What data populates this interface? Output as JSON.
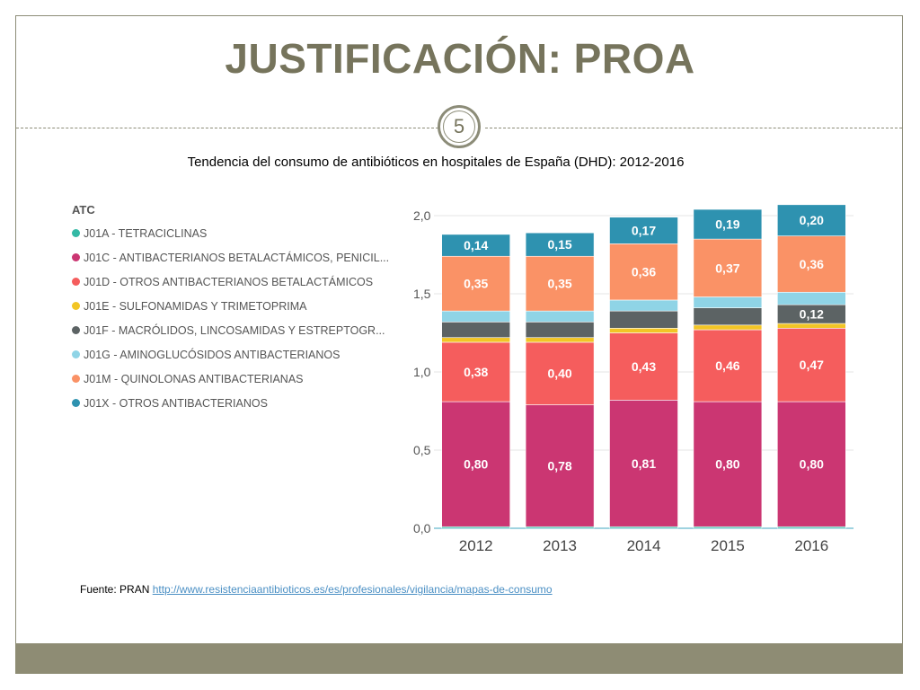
{
  "slide": {
    "title": "JUSTIFICACIÓN: PROA",
    "page_number": "5",
    "source_prefix": "Fuente: PRAN",
    "source_link": "http://www.resistenciaantibioticos.es/es/profesionales/vigilancia/mapas-de-consumo"
  },
  "colors": {
    "frame": "#8c8c78",
    "bottom_band": "#8e8c74",
    "title": "#76745c",
    "link": "#4a8fc4"
  },
  "chart_data": {
    "type": "bar",
    "stacked": true,
    "title": "Tendencia del consumo de antibióticos en hospitales de España (DHD): 2012-2016",
    "legend_title": "ATC",
    "categories": [
      "2012",
      "2013",
      "2014",
      "2015",
      "2016"
    ],
    "ylim": [
      0,
      2.0
    ],
    "yticks": [
      0.0,
      0.5,
      1.0,
      1.5,
      2.0
    ],
    "ytick_labels": [
      "0,0",
      "0,5",
      "1,0",
      "1,5",
      "2,0"
    ],
    "grid": true,
    "series": [
      {
        "name": "J01A - TETRACICLINAS",
        "color": "#33b9a5",
        "values": [
          0.01,
          0.01,
          0.01,
          0.01,
          0.01
        ],
        "labels": [
          "",
          "",
          "",
          "",
          ""
        ]
      },
      {
        "name": "J01C - ANTIBACTERIANOS BETALACTÁMICOS, PENICIL...",
        "color": "#cb3672",
        "values": [
          0.8,
          0.78,
          0.81,
          0.8,
          0.8
        ],
        "labels": [
          "0,80",
          "0,78",
          "0,81",
          "0,80",
          "0,80"
        ]
      },
      {
        "name": "J01D - OTROS ANTIBACTERIANOS BETALACTÁMICOS",
        "color": "#f55d5d",
        "values": [
          0.38,
          0.4,
          0.43,
          0.46,
          0.47
        ],
        "labels": [
          "0,38",
          "0,40",
          "0,43",
          "0,46",
          "0,47"
        ]
      },
      {
        "name": "J01E - SULFONAMIDAS Y TRIMETOPRIMA",
        "color": "#f2c525",
        "values": [
          0.03,
          0.03,
          0.03,
          0.03,
          0.03
        ],
        "labels": [
          "",
          "",
          "",
          "",
          ""
        ]
      },
      {
        "name": "J01F - MACRÓLIDOS, LINCOSAMIDAS Y ESTREPTOGR...",
        "color": "#5c6364",
        "values": [
          0.1,
          0.1,
          0.11,
          0.11,
          0.12
        ],
        "labels": [
          "",
          "",
          "",
          "",
          "0,12"
        ]
      },
      {
        "name": "J01G - AMINOGLUCÓSIDOS ANTIBACTERIANOS",
        "color": "#8fd4e6",
        "values": [
          0.07,
          0.07,
          0.07,
          0.07,
          0.08
        ],
        "labels": [
          "",
          "",
          "",
          "",
          ""
        ]
      },
      {
        "name": "J01M - QUINOLONAS ANTIBACTERIANAS",
        "color": "#fa9266",
        "values": [
          0.35,
          0.35,
          0.36,
          0.37,
          0.36
        ],
        "labels": [
          "0,35",
          "0,35",
          "0,36",
          "0,37",
          "0,36"
        ]
      },
      {
        "name": "J01X - OTROS ANTIBACTERIANOS",
        "color": "#2e92b0",
        "values": [
          0.14,
          0.15,
          0.17,
          0.19,
          0.2
        ],
        "labels": [
          "0,14",
          "0,15",
          "0,17",
          "0,19",
          "0,20"
        ]
      }
    ]
  }
}
